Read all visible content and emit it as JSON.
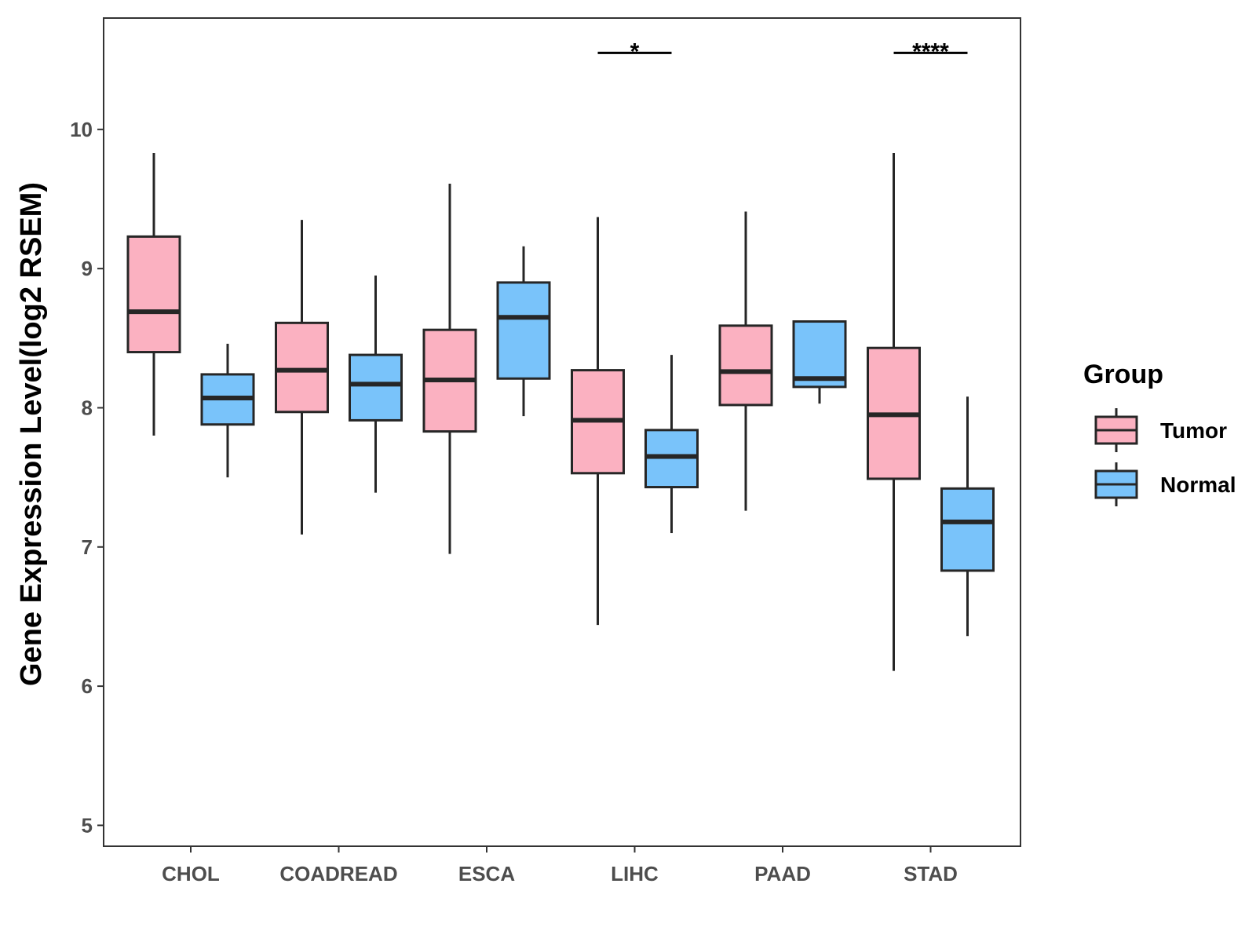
{
  "chart_data": {
    "type": "boxplot",
    "title": "",
    "xlabel": "",
    "ylabel": "Gene Expression Level(log2 RSEM)",
    "ylim": [
      4.85,
      10.8
    ],
    "yticks": [
      5,
      6,
      7,
      8,
      9,
      10
    ],
    "categories": [
      "CHOL",
      "COADREAD",
      "ESCA",
      "LIHC",
      "PAAD",
      "STAD"
    ],
    "legend": {
      "title": "Group",
      "position": "right"
    },
    "colors": {
      "Tumor": "#fbb1c1",
      "Normal": "#79c3fa",
      "stroke": "#262626",
      "axis": "#333333"
    },
    "series": [
      {
        "name": "Tumor",
        "boxes": [
          {
            "category": "CHOL",
            "min": 7.8,
            "q1": 8.4,
            "median": 8.69,
            "q3": 9.23,
            "max": 9.83
          },
          {
            "category": "COADREAD",
            "min": 7.09,
            "q1": 7.97,
            "median": 8.27,
            "q3": 8.61,
            "max": 9.35
          },
          {
            "category": "ESCA",
            "min": 6.95,
            "q1": 7.83,
            "median": 8.2,
            "q3": 8.56,
            "max": 9.61
          },
          {
            "category": "LIHC",
            "min": 6.44,
            "q1": 7.53,
            "median": 7.91,
            "q3": 8.27,
            "max": 9.37
          },
          {
            "category": "PAAD",
            "min": 7.26,
            "q1": 8.02,
            "median": 8.26,
            "q3": 8.59,
            "max": 9.41
          },
          {
            "category": "STAD",
            "min": 6.11,
            "q1": 7.49,
            "median": 7.95,
            "q3": 8.43,
            "max": 9.83
          }
        ]
      },
      {
        "name": "Normal",
        "boxes": [
          {
            "category": "CHOL",
            "min": 7.5,
            "q1": 7.88,
            "median": 8.07,
            "q3": 8.24,
            "max": 8.46
          },
          {
            "category": "COADREAD",
            "min": 7.39,
            "q1": 7.91,
            "median": 8.17,
            "q3": 8.38,
            "max": 8.95
          },
          {
            "category": "ESCA",
            "min": 7.94,
            "q1": 8.21,
            "median": 8.65,
            "q3": 8.9,
            "max": 9.16
          },
          {
            "category": "LIHC",
            "min": 7.1,
            "q1": 7.43,
            "median": 7.65,
            "q3": 7.84,
            "max": 8.38
          },
          {
            "category": "PAAD",
            "min": 8.03,
            "q1": 8.15,
            "median": 8.21,
            "q3": 8.62,
            "max": 8.62
          },
          {
            "category": "STAD",
            "min": 6.36,
            "q1": 6.83,
            "median": 7.18,
            "q3": 7.42,
            "max": 8.08
          }
        ]
      }
    ],
    "annotations": [
      {
        "category": "LIHC",
        "label": "*",
        "y": 10.55
      },
      {
        "category": "STAD",
        "label": "****",
        "y": 10.55
      }
    ]
  }
}
